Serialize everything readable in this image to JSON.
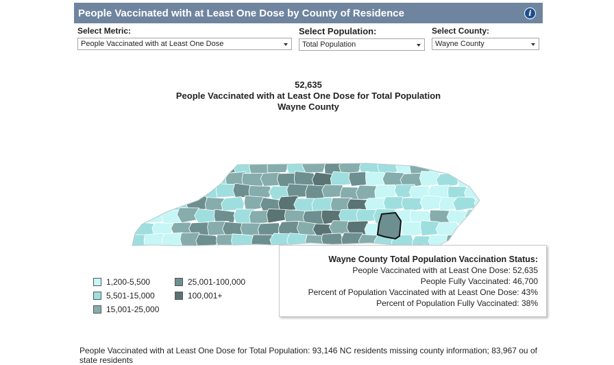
{
  "header": {
    "title": "People Vaccinated with at Least One Dose by County of Residence",
    "info_icon": "info-icon"
  },
  "controls": {
    "metric": {
      "label": "Select Metric:",
      "value": "People Vaccinated with at Least One Dose"
    },
    "population": {
      "label": "Select Population:",
      "value": "Total Population"
    },
    "county": {
      "label": "Select County:",
      "value": "Wayne County"
    }
  },
  "headline": {
    "value": "52,635",
    "line2": "People Vaccinated with at Least One Dose for Total Population",
    "line3": "Wayne County"
  },
  "legend": [
    {
      "label": "1,200-5,500",
      "color": "#c6f6f6"
    },
    {
      "label": "5,501-15,000",
      "color": "#9fdede"
    },
    {
      "label": "15,001-25,000",
      "color": "#86acac"
    },
    {
      "label": "25,001-100,000",
      "color": "#6e8f8f"
    },
    {
      "label": "100,001+",
      "color": "#5a7373"
    }
  ],
  "tooltip": {
    "title": "Wayne County Total Population Vaccination Status:",
    "lines": [
      "People Vaccinated with at Least One Dose: 52,635",
      "People Fully Vaccinated: 46,700",
      "Percent of Population Vaccinated with at Least One Dose: 43%",
      "Percent of Population Fully Vaccinated: 38%"
    ]
  },
  "footer": "People Vaccinated with at Least One Dose for Total Population:  93,146 NC residents missing county information; 83,967 ou of state residents"
}
